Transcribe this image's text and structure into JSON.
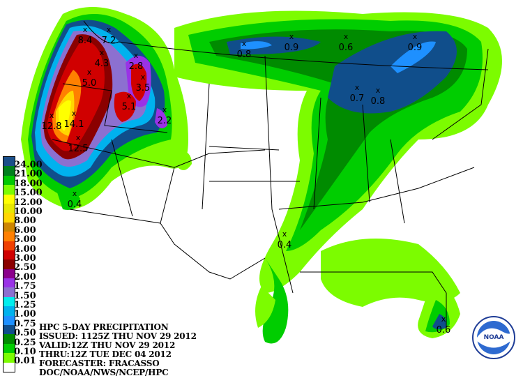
{
  "title": "HPC 5-DAY PRECIPITATION",
  "info_lines": [
    "HPC 5-DAY PRECIPITATION",
    "ISSUED: 1125Z THU NOV 29 2012",
    "VALID:12Z THU NOV 29 2012",
    "THRU:12Z TUE DEC 04 2012",
    "FORECASTER: FRACASSO",
    "DOC/NOAA/NWS/NCEP/HPC"
  ],
  "legend": [
    {
      "label": "24.00",
      "color": "#1b4f8a"
    },
    {
      "label": "21.00",
      "color": "#00801e"
    },
    {
      "label": "18.00",
      "color": "#00c800"
    },
    {
      "label": "15.00",
      "color": "#7cfc00"
    },
    {
      "label": "12.00",
      "color": "#ffff00"
    },
    {
      "label": "10.00",
      "color": "#e8e800"
    },
    {
      "label": "8.00",
      "color": "#ffd700"
    },
    {
      "label": "6.00",
      "color": "#cd8500"
    },
    {
      "label": "5.00",
      "color": "#ff8000"
    },
    {
      "label": "4.00",
      "color": "#f04000"
    },
    {
      "label": "3.00",
      "color": "#d00000"
    },
    {
      "label": "2.50",
      "color": "#8b0000"
    },
    {
      "label": "2.00",
      "color": "#8b008b"
    },
    {
      "label": "1.75",
      "color": "#9a32e6"
    },
    {
      "label": "1.50",
      "color": "#8c70d0"
    },
    {
      "label": "1.25",
      "color": "#00eeee"
    },
    {
      "label": "1.00",
      "color": "#00b2ee"
    },
    {
      "label": "0.75",
      "color": "#1e90ff"
    },
    {
      "label": "0.50",
      "color": "#104e8b"
    },
    {
      "label": "0.25",
      "color": "#008b00"
    },
    {
      "label": "0.10",
      "color": "#00cd00"
    },
    {
      "label": "0.01",
      "color": "#7cfc00"
    },
    {
      "label": "",
      "color": "#ffffff"
    }
  ],
  "maxima": [
    "8.4",
    "7.2",
    "4.3",
    "5.0",
    "2.8",
    "3.5",
    "5.1",
    "2.2",
    "12.8",
    "14.1",
    "12.5",
    "0.4",
    "0.8",
    "0.9",
    "0.6",
    "0.9",
    "0.7",
    "0.8",
    "0.4",
    "0.6"
  ],
  "logo": {
    "text": "NOAA",
    "icon": "noaa-logo"
  }
}
